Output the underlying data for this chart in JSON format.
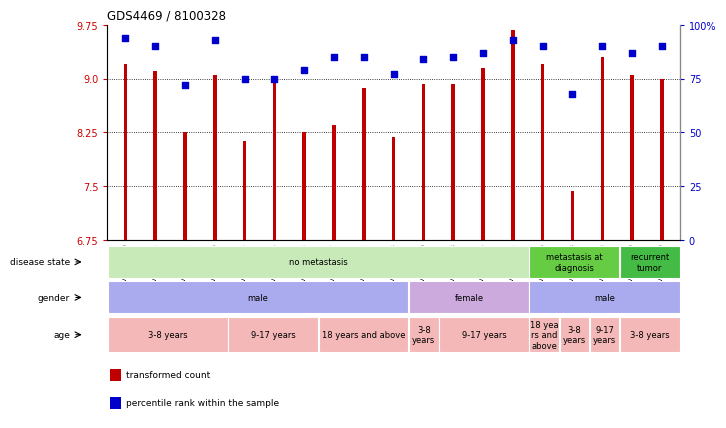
{
  "title": "GDS4469 / 8100328",
  "samples": [
    "GSM1025530",
    "GSM1025531",
    "GSM1025532",
    "GSM1025546",
    "GSM1025535",
    "GSM1025544",
    "GSM1025545",
    "GSM1025537",
    "GSM1025542",
    "GSM1025543",
    "GSM1025540",
    "GSM1025528",
    "GSM1025534",
    "GSM1025541",
    "GSM1025536",
    "GSM1025538",
    "GSM1025533",
    "GSM1025529",
    "GSM1025539"
  ],
  "transformed_count": [
    9.2,
    9.1,
    8.25,
    9.05,
    8.13,
    9.0,
    8.25,
    8.35,
    8.87,
    8.19,
    8.93,
    8.93,
    9.15,
    9.68,
    9.2,
    7.43,
    9.3,
    9.05,
    9.0
  ],
  "percentile_rank": [
    94,
    90,
    72,
    93,
    75,
    75,
    79,
    85,
    85,
    77,
    84,
    85,
    87,
    93,
    90,
    68,
    90,
    87,
    90
  ],
  "ylim_left": [
    6.75,
    9.75
  ],
  "ylim_right": [
    0,
    100
  ],
  "yticks_left": [
    6.75,
    7.5,
    8.25,
    9.0,
    9.75
  ],
  "yticks_right": [
    0,
    25,
    50,
    75,
    100
  ],
  "bar_color": "#c00000",
  "dot_color": "#0000cc",
  "annotation_rows": [
    {
      "label": "disease state",
      "segments": [
        {
          "text": "no metastasis",
          "start": 0,
          "end": 14,
          "color": "#c8eab8"
        },
        {
          "text": "metastasis at\ndiagnosis",
          "start": 14,
          "end": 17,
          "color": "#66cc44"
        },
        {
          "text": "recurrent\ntumor",
          "start": 17,
          "end": 19,
          "color": "#44bb44"
        }
      ]
    },
    {
      "label": "gender",
      "segments": [
        {
          "text": "male",
          "start": 0,
          "end": 10,
          "color": "#aaaaee"
        },
        {
          "text": "female",
          "start": 10,
          "end": 14,
          "color": "#ccaadd"
        },
        {
          "text": "male",
          "start": 14,
          "end": 19,
          "color": "#aaaaee"
        }
      ]
    },
    {
      "label": "age",
      "segments": [
        {
          "text": "3-8 years",
          "start": 0,
          "end": 4,
          "color": "#f4b8b8"
        },
        {
          "text": "9-17 years",
          "start": 4,
          "end": 7,
          "color": "#f4b8b8"
        },
        {
          "text": "18 years and above",
          "start": 7,
          "end": 10,
          "color": "#f4b8b8"
        },
        {
          "text": "3-8\nyears",
          "start": 10,
          "end": 11,
          "color": "#f4b8b8"
        },
        {
          "text": "9-17 years",
          "start": 11,
          "end": 14,
          "color": "#f4b8b8"
        },
        {
          "text": "18 yea\nrs and\nabove",
          "start": 14,
          "end": 15,
          "color": "#f4b8b8"
        },
        {
          "text": "3-8\nyears",
          "start": 15,
          "end": 16,
          "color": "#f4b8b8"
        },
        {
          "text": "9-17\nyears",
          "start": 16,
          "end": 17,
          "color": "#f4b8b8"
        },
        {
          "text": "3-8 years",
          "start": 17,
          "end": 19,
          "color": "#f4b8b8"
        }
      ]
    }
  ],
  "legend_items": [
    {
      "color": "#c00000",
      "label": "transformed count"
    },
    {
      "color": "#0000cc",
      "label": "percentile rank within the sample"
    }
  ]
}
